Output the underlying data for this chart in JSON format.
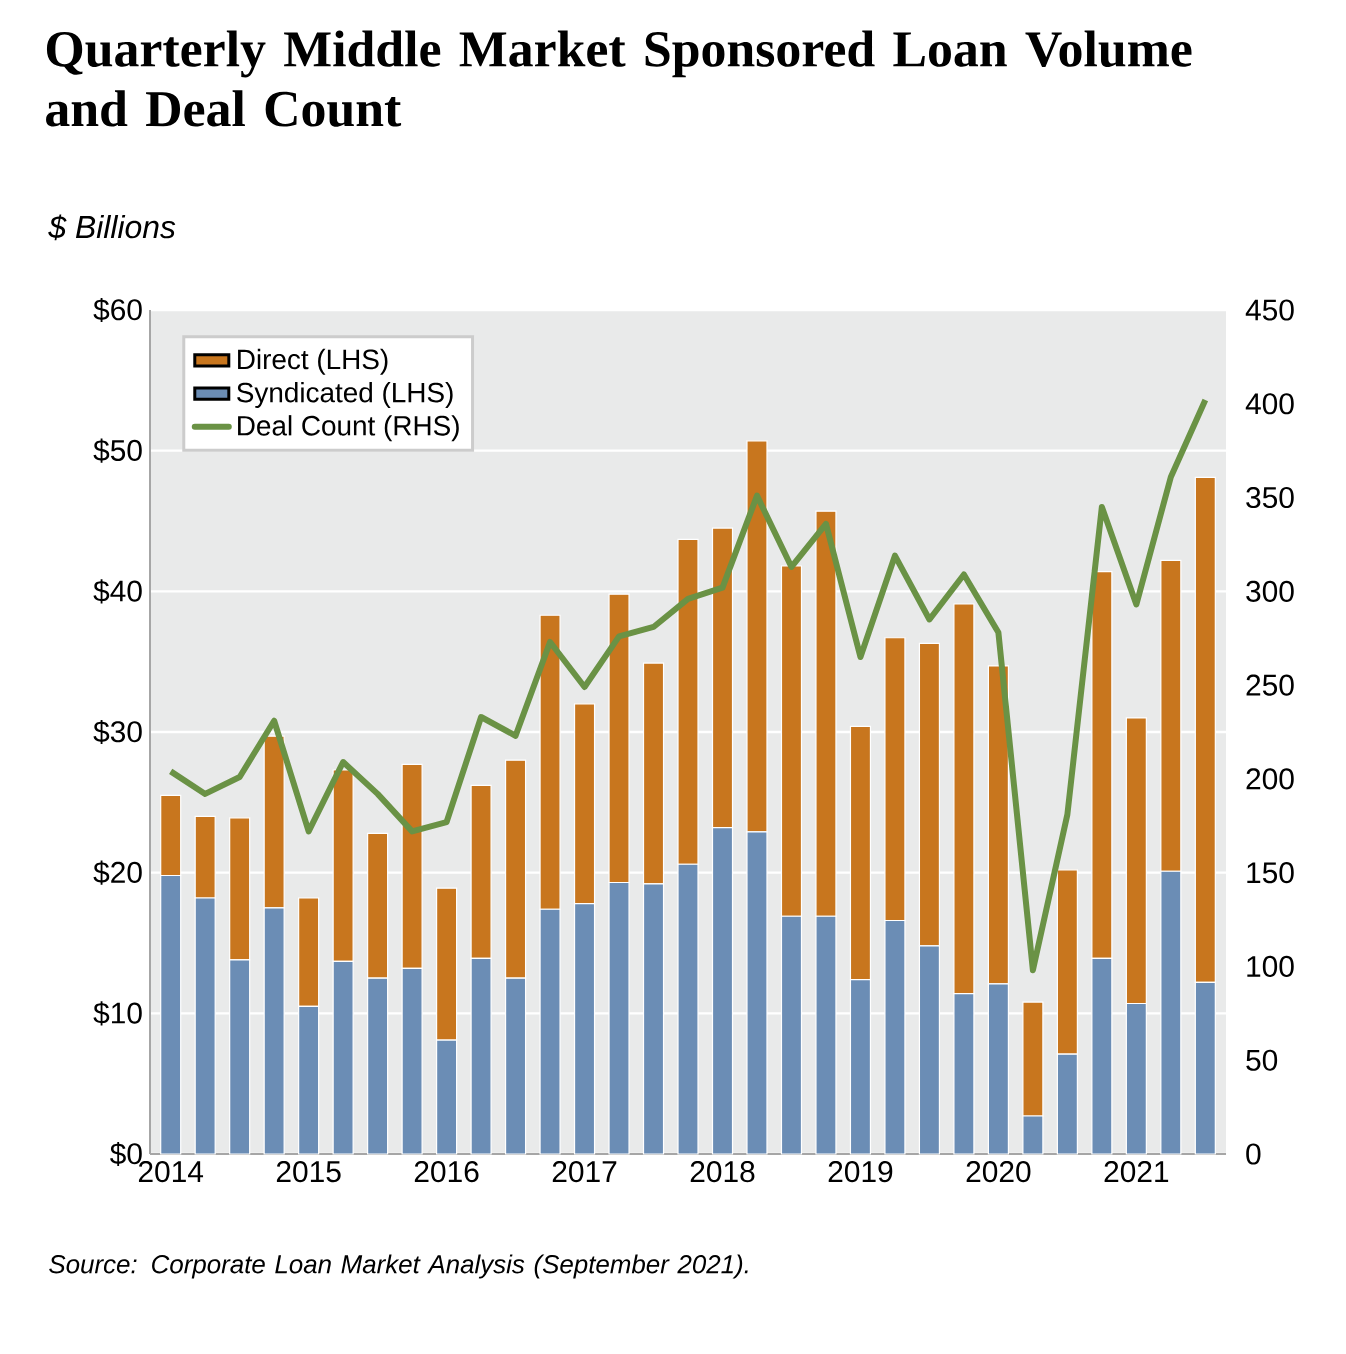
{
  "chart_data": {
    "type": "bar",
    "title": "Quarterly Middle Market Sponsored Loan Volume and Deal Count",
    "subtitle": "$ Billions",
    "annotations": [
      "Source: Corporate Loan Market Analysis (September 2021)."
    ],
    "categories": [
      "2014",
      null,
      null,
      null,
      "2015",
      null,
      null,
      null,
      "2016",
      null,
      null,
      null,
      "2017",
      null,
      null,
      null,
      "2018",
      null,
      null,
      null,
      "2019",
      null,
      null,
      null,
      "2020",
      null,
      null,
      null,
      "2021",
      null,
      null
    ],
    "stacked": true,
    "series": [
      {
        "name": "Syndicated (LHS)",
        "color": "#6b8db5",
        "values": [
          19.8,
          18.2,
          13.8,
          17.5,
          10.5,
          13.7,
          12.5,
          13.2,
          8.1,
          13.9,
          12.5,
          17.4,
          17.8,
          19.3,
          19.2,
          20.6,
          23.2,
          22.9,
          16.9,
          16.9,
          12.4,
          16.6,
          14.8,
          11.4,
          12.1,
          2.7,
          7.1,
          13.9,
          10.7,
          20.1,
          12.2
        ]
      },
      {
        "name": "Direct (LHS)",
        "color": "#c8761e",
        "values": [
          5.7,
          5.8,
          10.1,
          12.2,
          7.7,
          13.6,
          10.3,
          14.5,
          10.8,
          12.3,
          15.5,
          20.9,
          14.2,
          20.5,
          15.7,
          23.1,
          21.3,
          27.8,
          24.9,
          28.8,
          18.0,
          20.1,
          21.5,
          27.7,
          22.6,
          8.1,
          13.1,
          27.5,
          20.3,
          22.1,
          35.9
        ]
      },
      {
        "name": "Deal Count (RHS)",
        "type": "line",
        "axis": "y2",
        "color": "#6a9245",
        "values": [
          204,
          192,
          201,
          231,
          172,
          209,
          192,
          172,
          177,
          233,
          223,
          273,
          249,
          276,
          281,
          296,
          302,
          351,
          313,
          336,
          265,
          319,
          285,
          309,
          278,
          98,
          181,
          345,
          293,
          361,
          402
        ]
      }
    ],
    "ylim": [
      0,
      60
    ],
    "yticks": [
      {
        "value": 0,
        "label": "$0"
      },
      {
        "value": 10,
        "label": "$10"
      },
      {
        "value": 20,
        "label": "$20"
      },
      {
        "value": 30,
        "label": "$30"
      },
      {
        "value": 40,
        "label": "$40"
      },
      {
        "value": 50,
        "label": "$50"
      },
      {
        "value": 60,
        "label": "$60"
      }
    ],
    "y2lim": [
      0,
      450
    ],
    "y2ticks": [
      0,
      50,
      100,
      150,
      200,
      250,
      300,
      350,
      400,
      450
    ],
    "grid": "y",
    "legend": "top left"
  }
}
